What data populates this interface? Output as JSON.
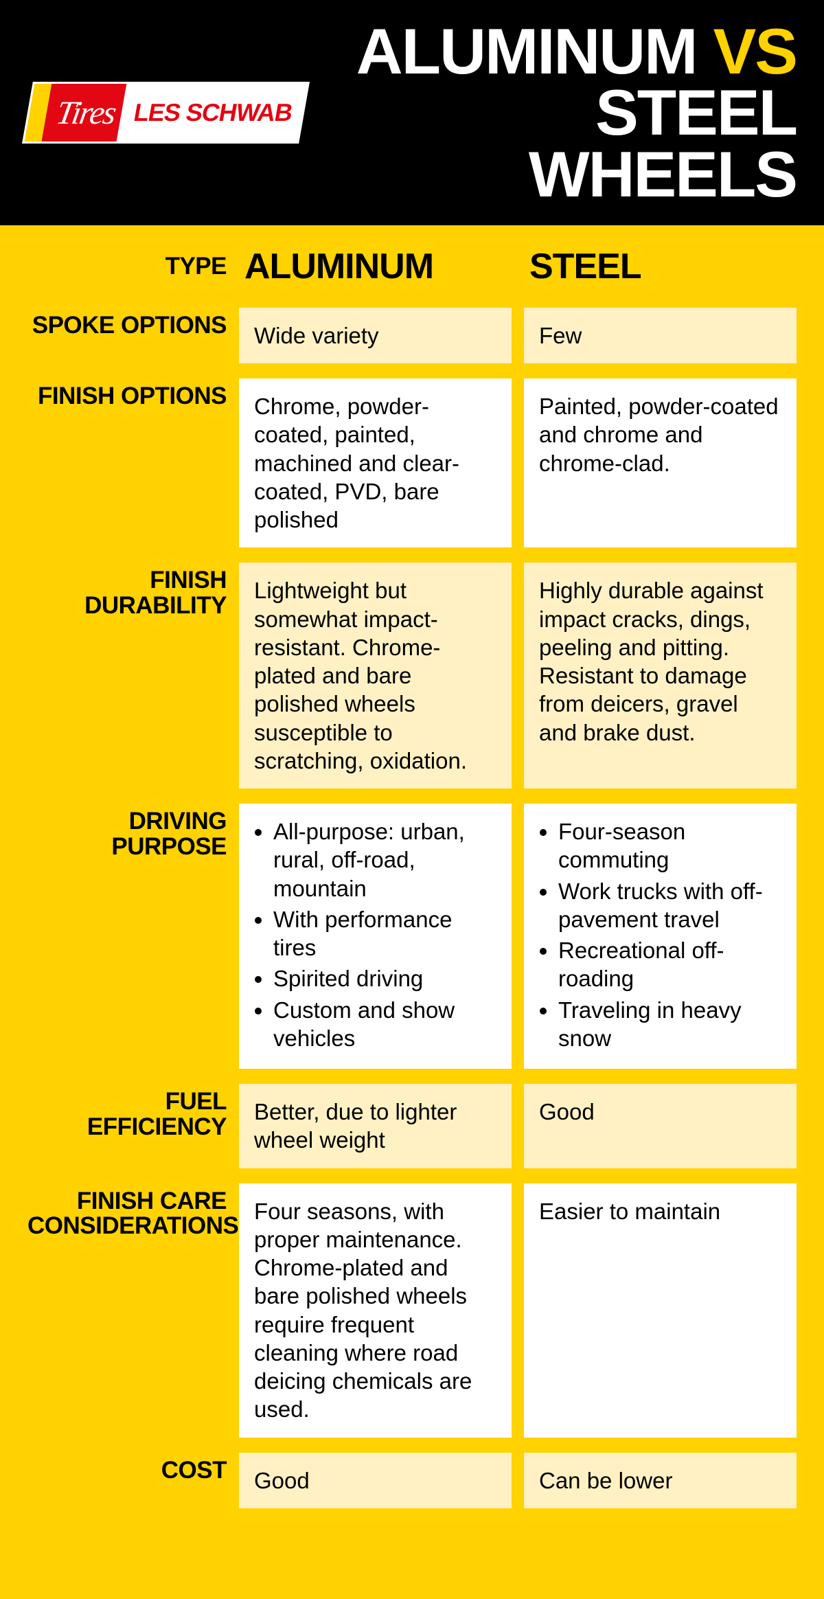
{
  "colors": {
    "background": "#ffd200",
    "header_bg": "#000000",
    "title_text": "#ffffff",
    "vs_text": "#ffd200",
    "logo_red": "#e30613",
    "cell_cream": "#fff1c4",
    "cell_white": "#ffffff",
    "text": "#000000"
  },
  "logo": {
    "tires": "Tires",
    "brand": "LES SCHWAB"
  },
  "title": {
    "line1a": "ALUMINUM ",
    "line1b": "VS",
    "line2": "STEEL WHEELS"
  },
  "columns": {
    "type_label": "TYPE",
    "col1": "ALUMINUM",
    "col2": "STEEL"
  },
  "rows": [
    {
      "label": "SPOKE OPTIONS",
      "shade": "cream",
      "aluminum": {
        "type": "text",
        "value": "Wide variety"
      },
      "steel": {
        "type": "text",
        "value": "Few"
      }
    },
    {
      "label": "FINISH OPTIONS",
      "shade": "white",
      "aluminum": {
        "type": "text",
        "value": "Chrome, powder-coated, painted, machined and clear-coated, PVD, bare polished"
      },
      "steel": {
        "type": "text",
        "value": "Painted, powder-coated and chrome and chrome-clad."
      }
    },
    {
      "label": "FINISH DURABILITY",
      "shade": "cream",
      "aluminum": {
        "type": "text",
        "value": "Lightweight but somewhat impact-resistant. Chrome-plated and bare polished wheels susceptible to scratching, oxidation."
      },
      "steel": {
        "type": "text",
        "value": "Highly durable against impact cracks, dings, peeling and pitting. Resistant to damage from deicers, gravel and brake dust."
      }
    },
    {
      "label": "DRIVING PURPOSE",
      "shade": "white",
      "aluminum": {
        "type": "list",
        "items": [
          "All-purpose: urban, rural, off-road, mountain",
          "With performance tires",
          "Spirited driving",
          "Custom and show vehicles"
        ]
      },
      "steel": {
        "type": "list",
        "items": [
          "Four-season commuting",
          "Work trucks with off-pavement travel",
          "Recreational off-roading",
          "Traveling in heavy snow"
        ]
      }
    },
    {
      "label": "FUEL EFFICIENCY",
      "shade": "cream",
      "aluminum": {
        "type": "text",
        "value": "Better, due to lighter wheel weight"
      },
      "steel": {
        "type": "text",
        "value": "Good"
      }
    },
    {
      "label": "FINISH CARE CONSIDERATIONS",
      "shade": "white",
      "aluminum": {
        "type": "text",
        "value": "Four seasons, with proper maintenance. Chrome-plated and bare polished wheels require frequent cleaning where road deicing chemicals are used."
      },
      "steel": {
        "type": "text",
        "value": "Easier to maintain"
      }
    },
    {
      "label": "COST",
      "shade": "cream",
      "aluminum": {
        "type": "text",
        "value": "Good"
      },
      "steel": {
        "type": "text",
        "value": "Can be lower"
      }
    }
  ]
}
